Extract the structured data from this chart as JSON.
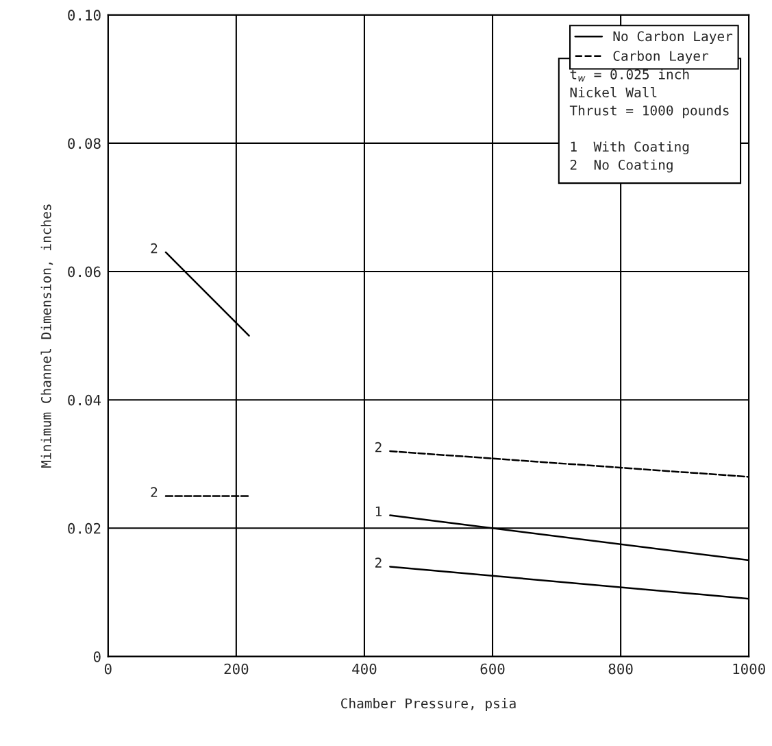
{
  "chart_data": {
    "type": "line",
    "xlabel": "Chamber Pressure, psia",
    "ylabel": "Minimum Channel Dimension, inches",
    "xlim": [
      0,
      1000
    ],
    "ylim": [
      0,
      0.1
    ],
    "xticks": [
      0,
      200,
      400,
      600,
      800,
      1000
    ],
    "yticks": [
      {
        "value": 0,
        "label": "0"
      },
      {
        "value": 0.02,
        "label": "0.02"
      },
      {
        "value": 0.04,
        "label": "0.04"
      },
      {
        "value": 0.06,
        "label": "0.06"
      },
      {
        "value": 0.08,
        "label": "0.08"
      },
      {
        "value": 0.1,
        "label": "0.10"
      }
    ],
    "grid": true,
    "legend": "top right",
    "marker": "none",
    "series": [
      {
        "name": "No Carbon Layer",
        "color": "#000000",
        "line_style": "solid",
        "x": [
          90,
          220
        ],
        "values": [
          0.063,
          0.05
        ]
      },
      {
        "name": "Carbon Layer",
        "color": "#000000",
        "line_style": "dashed",
        "x": [
          90,
          220
        ],
        "values": [
          0.025,
          0.025
        ]
      },
      {
        "color": "#000000",
        "line_style": "dashed",
        "x": [
          440,
          1000
        ],
        "values": [
          0.032,
          0.028
        ]
      },
      {
        "color": "#000000",
        "line_style": "solid",
        "x": [
          440,
          1000
        ],
        "values": [
          0.022,
          0.015
        ]
      },
      {
        "color": "#000000",
        "line_style": "solid",
        "x": [
          440,
          1000
        ],
        "values": [
          0.014,
          0.009
        ]
      }
    ],
    "annotations": [
      "2",
      "2",
      "2",
      "1",
      "2",
      "t$_{w}$ = 0.025 inch",
      "Nickel Wall",
      "Thrust = 1000 pounds",
      "1  With Coating",
      "2  No Coating"
    ]
  }
}
